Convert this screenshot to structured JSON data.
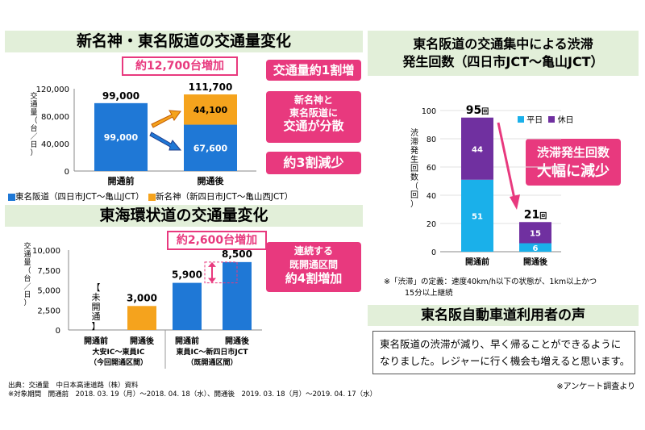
{
  "colors": {
    "blue": "#1f78d6",
    "orange": "#f5a31d",
    "cyan": "#1ab0ea",
    "purple": "#7030a0",
    "pink": "#e8397e",
    "header_bg": "#e2efd9"
  },
  "panel1": {
    "title": "新名神・東名阪道の交通量変化",
    "increase_label": "約12,700台増加",
    "callout_top": "交通量約1割増",
    "callout_mid_line1": "新名神と",
    "callout_mid_line2": "東名阪道に",
    "callout_mid_line3": "交通が分散",
    "callout_bottom": "約3割減少",
    "ylabel": "交通量（台／日）",
    "legend_blue": "東名阪道（四日市JCT〜亀山JCT）",
    "legend_orange": "新名神（新四日市JCT〜亀山西JCT）"
  },
  "panel2": {
    "title": "東海環状道の交通量変化",
    "increase_label": "約2,600台増加",
    "callout_line1": "連続する",
    "callout_line2": "既開通区間",
    "callout_line3": "約4割増加",
    "ylabel": "交通量（台／日）",
    "unopened_label": "【未開通】",
    "group1_line1": "大安IC〜東員IC",
    "group1_line2": "（今回開通区間）",
    "group2_line1": "東員IC〜新四日市JCT",
    "group2_line2": "（既開通区間）"
  },
  "panel3": {
    "title_line1": "東名阪道の交通集中による渋滞",
    "title_line2": "発生回数（四日市JCT〜亀山JCT）",
    "ylabel": "渋滞発生回数（回）",
    "legend_weekday": "平日",
    "legend_holiday": "休日",
    "callout_line1": "渋滞発生回数",
    "callout_line2": "大幅に減少",
    "note_line1": "※「渋滞」の定義：速度40km/h以下の状態が、1km以上かつ",
    "note_line2": "15分以上継続"
  },
  "panel4": {
    "title": "東名阪自動車道利用者の声",
    "quote_line1": "東名阪道の渋滞が減り、早く帰ることができるように",
    "quote_line2": "なりました。レジャーに行く機会も増えると思います。",
    "survey_note": "※アンケート調査より"
  },
  "footer": {
    "line1": "出典：交通量　中日本高速道路（株）資料",
    "line2": "※対象期間　開通前　2018. 03. 19（月）〜2018. 04. 18（水）、開通後　2019. 03. 18（月）〜2019. 04. 17（水）"
  },
  "chart_data": [
    {
      "type": "bar",
      "title": "新名神・東名阪道の交通量変化",
      "categories": [
        "開通前",
        "開通後"
      ],
      "series": [
        {
          "name": "東名阪道（四日市JCT〜亀山JCT）",
          "values": [
            99000,
            67600
          ]
        },
        {
          "name": "新名神（新四日市JCT〜亀山西JCT）",
          "values": [
            0,
            44100
          ]
        }
      ],
      "totals": [
        99000,
        111700
      ],
      "total_labels": [
        "99,000",
        "111,700"
      ],
      "value_labels": [
        [
          "99,000",
          "67,600"
        ],
        [
          "",
          "44,100"
        ]
      ],
      "ylabel": "交通量（台／日）",
      "ylim": [
        0,
        120000
      ],
      "yticks": [
        0,
        40000,
        80000,
        120000
      ],
      "ytick_labels": [
        "0",
        "40,000",
        "80,000",
        "120,000"
      ],
      "stacked": true
    },
    {
      "type": "bar",
      "title": "東海環状道の交通量変化",
      "categories": [
        "開通前",
        "開通後",
        "開通前",
        "開通後"
      ],
      "values": [
        null,
        3000,
        5900,
        8500
      ],
      "value_labels": [
        "",
        "3,000",
        "5,900",
        "8,500"
      ],
      "ylabel": "交通量（台／日）",
      "ylim": [
        0,
        10000
      ],
      "yticks": [
        0,
        2500,
        5000,
        7500,
        10000
      ],
      "ytick_labels": [
        "0",
        "2,500",
        "5,000",
        "7,500",
        "10,000"
      ]
    },
    {
      "type": "bar",
      "title": "東名阪道の交通集中による渋滞発生回数（四日市JCT〜亀山JCT）",
      "categories": [
        "開通前",
        "開通後"
      ],
      "series": [
        {
          "name": "平日",
          "values": [
            51,
            6
          ]
        },
        {
          "name": "休日",
          "values": [
            44,
            15
          ]
        }
      ],
      "totals": [
        95,
        21
      ],
      "total_labels": [
        "95",
        "21"
      ],
      "total_unit": "回",
      "ylabel": "渋滞発生回数（回）",
      "ylim": [
        0,
        100
      ],
      "yticks": [
        0,
        20,
        40,
        60,
        80,
        100
      ],
      "ytick_labels": [
        "0",
        "20",
        "40",
        "60",
        "80",
        "100"
      ],
      "stacked": true
    }
  ]
}
